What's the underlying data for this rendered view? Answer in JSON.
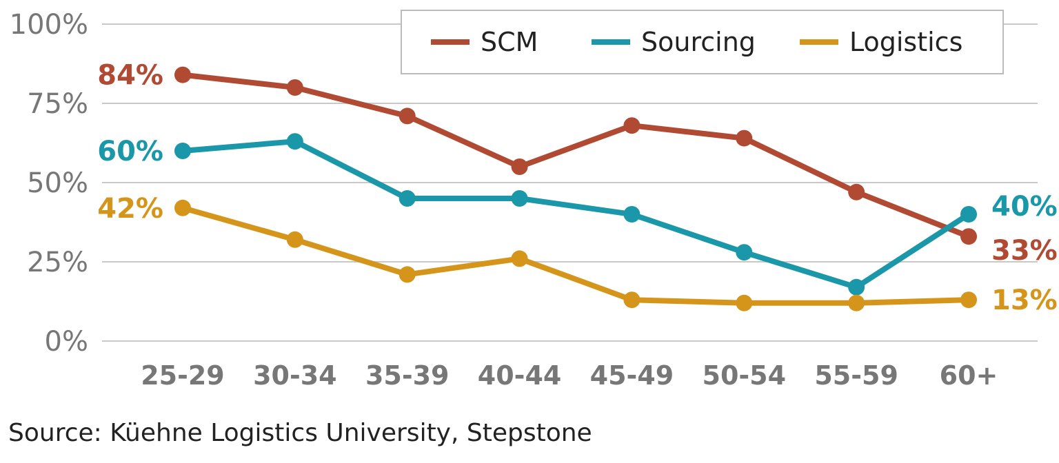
{
  "chart_data": {
    "type": "line",
    "title": "",
    "xlabel": "",
    "ylabel": "",
    "ylim": [
      0,
      100
    ],
    "yticks": [
      "0%",
      "25%",
      "50%",
      "75%",
      "100%"
    ],
    "ytick_values": [
      0,
      25,
      50,
      75,
      100
    ],
    "categories": [
      "25-29",
      "30-34",
      "35-39",
      "40-44",
      "45-49",
      "50-54",
      "55-59",
      "60+"
    ],
    "grid": true,
    "legend_position": "top-right",
    "series": [
      {
        "name": "SCM",
        "color": "#b04a33",
        "values": [
          84,
          80,
          71,
          55,
          68,
          64,
          47,
          33
        ],
        "start_label": "84%",
        "end_label": "33%"
      },
      {
        "name": "Sourcing",
        "color": "#1a97a8",
        "values": [
          60,
          63,
          45,
          45,
          40,
          28,
          17,
          40
        ],
        "start_label": "60%",
        "end_label": "40%"
      },
      {
        "name": "Logistics",
        "color": "#d4951a",
        "values": [
          42,
          32,
          21,
          26,
          13,
          12,
          12,
          13
        ],
        "start_label": "42%",
        "end_label": "13%"
      }
    ]
  },
  "source": "Source: Küehne Logistics University, Stepstone"
}
